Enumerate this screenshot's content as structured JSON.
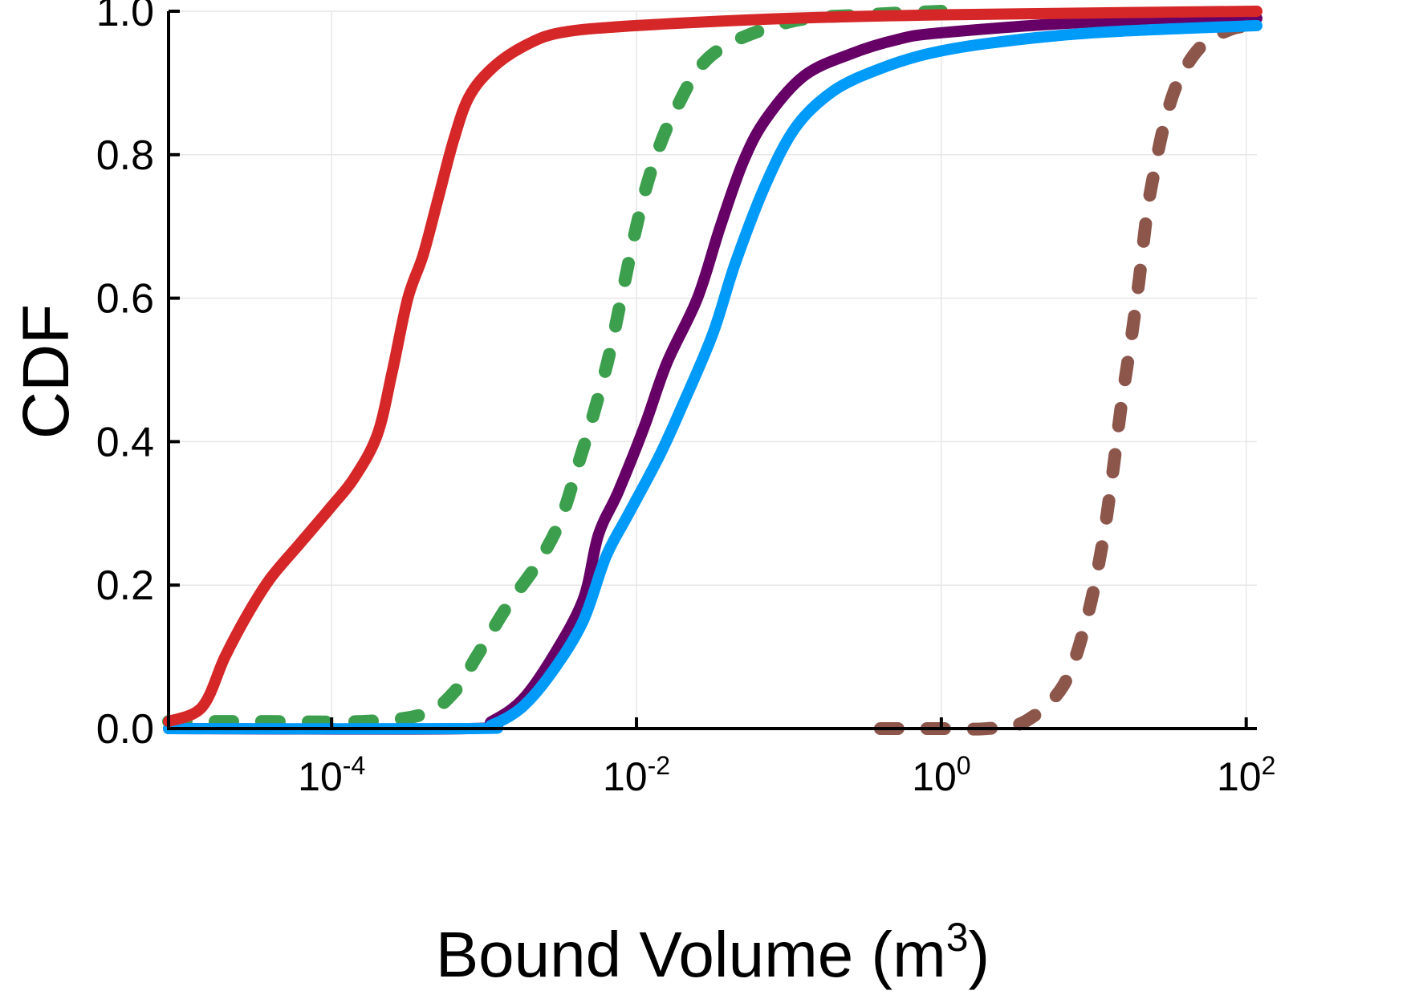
{
  "chart_data": {
    "type": "line",
    "title": "",
    "xlabel": "Bound Volume (m",
    "xlabel_sup": "3",
    "xlabel_close": ")",
    "ylabel": "CDF",
    "xscale": "log10",
    "xlim_log10": [
      -5.07,
      2.07
    ],
    "ylim": [
      0.0,
      1.0
    ],
    "grid": true,
    "legend": "none",
    "x_ticks": [
      {
        "base": "10",
        "exp": "-4",
        "log10": -4
      },
      {
        "base": "10",
        "exp": "-2",
        "log10": -2
      },
      {
        "base": "10",
        "exp": "0",
        "log10": 0
      },
      {
        "base": "10",
        "exp": "2",
        "log10": 2
      }
    ],
    "y_ticks": [
      {
        "label": "0.0",
        "value": 0.0
      },
      {
        "label": "0.2",
        "value": 0.2
      },
      {
        "label": "0.4",
        "value": 0.4
      },
      {
        "label": "0.6",
        "value": 0.6
      },
      {
        "label": "0.8",
        "value": 0.8
      },
      {
        "label": "1.0",
        "value": 1.0
      }
    ],
    "series": [
      {
        "name": "series-brown",
        "color": "#8c564b",
        "style": "dotted",
        "log10_x": [
          -0.4,
          -0.2,
          0.0,
          0.3,
          0.55,
          0.8,
          0.95,
          1.05,
          1.12,
          1.18,
          1.25,
          1.3,
          1.35,
          1.4,
          1.46,
          1.55,
          1.7,
          1.9,
          2.07
        ],
        "y": [
          0.0,
          0.0,
          0.0,
          0.0,
          0.01,
          0.06,
          0.15,
          0.25,
          0.35,
          0.45,
          0.55,
          0.63,
          0.72,
          0.78,
          0.84,
          0.9,
          0.95,
          0.975,
          0.98
        ]
      },
      {
        "name": "series-green",
        "color": "#3c9f4d",
        "style": "dotted",
        "log10_x": [
          -5.07,
          -4.5,
          -3.8,
          -3.4,
          -3.2,
          -3.05,
          -2.85,
          -2.65,
          -2.5,
          -2.38,
          -2.28,
          -2.18,
          -2.1,
          -2.0,
          -1.9,
          -1.75,
          -1.5,
          -1.0,
          -0.5,
          0.0
        ],
        "y": [
          0.01,
          0.01,
          0.01,
          0.02,
          0.05,
          0.1,
          0.17,
          0.23,
          0.29,
          0.37,
          0.44,
          0.52,
          0.6,
          0.7,
          0.78,
          0.86,
          0.94,
          0.985,
          0.995,
          1.0
        ]
      },
      {
        "name": "series-purple",
        "color": "#660066",
        "style": "solid",
        "log10_x": [
          -5.07,
          -3.1,
          -2.95,
          -2.75,
          -2.55,
          -2.35,
          -2.25,
          -2.12,
          -1.95,
          -1.8,
          -1.6,
          -1.45,
          -1.3,
          -1.15,
          -0.9,
          -0.6,
          -0.3,
          0.0,
          1.0,
          2.07
        ],
        "y": [
          0.0,
          0.0,
          0.01,
          0.04,
          0.1,
          0.18,
          0.27,
          0.33,
          0.42,
          0.51,
          0.6,
          0.7,
          0.79,
          0.85,
          0.91,
          0.94,
          0.96,
          0.97,
          0.985,
          0.99
        ]
      },
      {
        "name": "series-blue",
        "color": "#009af9",
        "style": "solid",
        "log10_x": [
          -5.07,
          -3.1,
          -2.95,
          -2.75,
          -2.55,
          -2.35,
          -2.2,
          -2.05,
          -1.85,
          -1.7,
          -1.5,
          -1.35,
          -1.15,
          -0.95,
          -0.7,
          -0.4,
          -0.1,
          0.3,
          1.0,
          2.07
        ],
        "y": [
          0.0,
          0.0,
          0.005,
          0.03,
          0.08,
          0.15,
          0.24,
          0.3,
          0.38,
          0.45,
          0.55,
          0.65,
          0.76,
          0.84,
          0.89,
          0.92,
          0.94,
          0.955,
          0.97,
          0.98
        ]
      },
      {
        "name": "series-red",
        "color": "#d62728",
        "style": "solid",
        "log10_x": [
          -5.07,
          -4.85,
          -4.7,
          -4.55,
          -4.4,
          -4.2,
          -4.0,
          -3.85,
          -3.7,
          -3.6,
          -3.5,
          -3.4,
          -3.3,
          -3.2,
          -3.1,
          -2.95,
          -2.75,
          -2.5,
          -2.0,
          -1.0,
          0.0,
          2.07
        ],
        "y": [
          0.01,
          0.03,
          0.1,
          0.16,
          0.21,
          0.26,
          0.31,
          0.35,
          0.41,
          0.5,
          0.6,
          0.66,
          0.74,
          0.82,
          0.88,
          0.92,
          0.95,
          0.97,
          0.98,
          0.99,
          0.995,
          1.0
        ]
      }
    ]
  }
}
